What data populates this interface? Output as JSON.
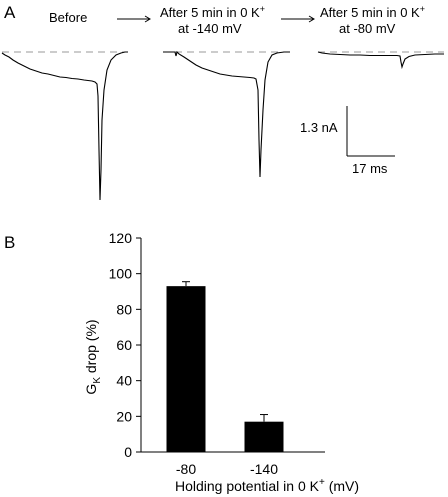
{
  "panel_a": {
    "label": "A",
    "conditions": [
      {
        "line1": "Before",
        "line2": ""
      },
      {
        "line1": "After 5 min in 0 K",
        "sup": "+",
        "line2": "at -140 mV"
      },
      {
        "line1": "After 5 min in 0 K",
        "sup": "+",
        "line2": "at -80 mV"
      }
    ],
    "scale_bar": {
      "current_label": "1.3 nA",
      "time_label": "17 ms"
    },
    "trace_color": "#000000",
    "baseline_color": "#9a9a9a"
  },
  "panel_b": {
    "label": "B",
    "ylabel_main": "G",
    "ylabel_sub": "K",
    "ylabel_rest": " drop (%)",
    "xlabel_main": "Holding potential in 0 K",
    "xlabel_sup": "+",
    "xlabel_rest": " (mV)"
  },
  "chart_data": {
    "type": "bar",
    "categories": [
      "-80",
      "-140"
    ],
    "values": [
      93,
      17
    ],
    "errors": [
      2.5,
      4
    ],
    "ylim": [
      0,
      120
    ],
    "yticks": [
      0,
      20,
      40,
      60,
      80,
      100,
      120
    ],
    "xlabel": "Holding potential in 0 K+ (mV)",
    "ylabel": "GK drop (%)",
    "bar_color": "#000000"
  }
}
